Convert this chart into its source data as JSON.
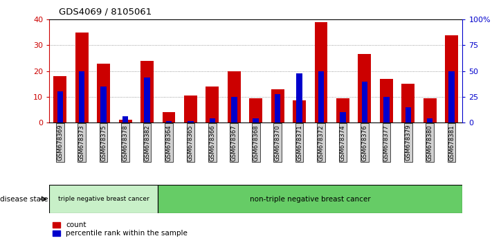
{
  "title": "GDS4069 / 8105061",
  "samples": [
    "GSM678369",
    "GSM678373",
    "GSM678375",
    "GSM678378",
    "GSM678382",
    "GSM678364",
    "GSM678365",
    "GSM678366",
    "GSM678367",
    "GSM678368",
    "GSM678370",
    "GSM678371",
    "GSM678372",
    "GSM678374",
    "GSM678376",
    "GSM678377",
    "GSM678379",
    "GSM678380",
    "GSM678381"
  ],
  "count_values": [
    18,
    35,
    23,
    1,
    24,
    4,
    10.5,
    14,
    20,
    9.5,
    13,
    8.5,
    39,
    9.5,
    26.5,
    17,
    15,
    9.5,
    34
  ],
  "percentile_values": [
    12,
    20,
    14,
    2.5,
    17.5,
    0.5,
    0.5,
    1.5,
    10,
    1.5,
    11,
    19,
    20,
    4,
    16,
    10,
    6,
    1.5,
    20
  ],
  "group1_count": 5,
  "group2_count": 14,
  "group1_label": "triple negative breast cancer",
  "group2_label": "non-triple negative breast cancer",
  "disease_state_label": "disease state",
  "ylim_left": [
    0,
    40
  ],
  "ylim_right": [
    0,
    100
  ],
  "yticks_left": [
    0,
    10,
    20,
    30,
    40
  ],
  "yticks_right": [
    0,
    25,
    50,
    75,
    100
  ],
  "yticklabels_right": [
    "0",
    "25",
    "50",
    "75",
    "100%"
  ],
  "bar_color_count": "#cc0000",
  "bar_color_pct": "#0000cc",
  "group1_bg": "#c8f0c8",
  "group2_bg": "#66cc66",
  "tick_label_bg": "#d0d0d0",
  "legend_count_label": "count",
  "legend_pct_label": "percentile rank within the sample",
  "bar_width": 0.6
}
